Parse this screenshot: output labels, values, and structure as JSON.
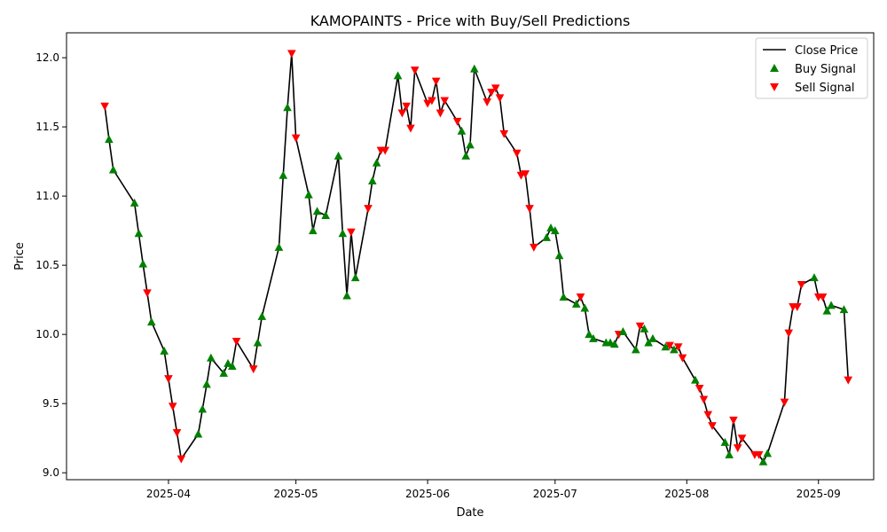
{
  "chart_data": {
    "type": "line",
    "title": "KAMOPAINTS - Price with Buy/Sell Predictions",
    "xlabel": "Date",
    "ylabel": "Price",
    "xlim": [
      "2025-03-08",
      "2025-09-14"
    ],
    "ylim": [
      8.95,
      12.18
    ],
    "x_ticks": [
      {
        "date": "2025-04-01",
        "label": "2025-04"
      },
      {
        "date": "2025-05-01",
        "label": "2025-05"
      },
      {
        "date": "2025-06-01",
        "label": "2025-06"
      },
      {
        "date": "2025-07-01",
        "label": "2025-07"
      },
      {
        "date": "2025-08-01",
        "label": "2025-08"
      },
      {
        "date": "2025-09-01",
        "label": "2025-09"
      }
    ],
    "y_ticks": [
      {
        "value": 9.0,
        "label": "9.0"
      },
      {
        "value": 9.5,
        "label": "9.5"
      },
      {
        "value": 10.0,
        "label": "10.0"
      },
      {
        "value": 10.5,
        "label": "10.5"
      },
      {
        "value": 11.0,
        "label": "11.0"
      },
      {
        "value": 11.5,
        "label": "11.5"
      },
      {
        "value": 12.0,
        "label": "12.0"
      }
    ],
    "grid": false,
    "legend_position": "top-right",
    "legend": [
      "Close Price",
      "Buy Signal",
      "Sell Signal"
    ],
    "colors": {
      "close": "#000000",
      "buy": "#008000",
      "sell": "#ff0000"
    },
    "series": [
      {
        "name": "Close Price",
        "points": [
          [
            "2025-03-17",
            11.65,
            "sell"
          ],
          [
            "2025-03-18",
            11.41,
            "buy"
          ],
          [
            "2025-03-19",
            11.19,
            "buy"
          ],
          [
            "2025-03-24",
            10.95,
            "buy"
          ],
          [
            "2025-03-25",
            10.73,
            "buy"
          ],
          [
            "2025-03-26",
            10.51,
            "buy"
          ],
          [
            "2025-03-27",
            10.3,
            "sell"
          ],
          [
            "2025-03-28",
            10.09,
            "buy"
          ],
          [
            "2025-03-31",
            9.88,
            "buy"
          ],
          [
            "2025-04-01",
            9.68,
            "sell"
          ],
          [
            "2025-04-02",
            9.48,
            "sell"
          ],
          [
            "2025-04-03",
            9.29,
            "sell"
          ],
          [
            "2025-04-04",
            9.1,
            "sell"
          ],
          [
            "2025-04-08",
            9.28,
            "buy"
          ],
          [
            "2025-04-09",
            9.46,
            "buy"
          ],
          [
            "2025-04-10",
            9.64,
            "buy"
          ],
          [
            "2025-04-11",
            9.83,
            "buy"
          ],
          [
            "2025-04-14",
            9.72,
            "buy"
          ],
          [
            "2025-04-15",
            9.79,
            "buy"
          ],
          [
            "2025-04-16",
            9.77,
            "buy"
          ],
          [
            "2025-04-17",
            9.95,
            "sell"
          ],
          [
            "2025-04-21",
            9.75,
            "sell"
          ],
          [
            "2025-04-22",
            9.94,
            "buy"
          ],
          [
            "2025-04-23",
            10.13,
            "buy"
          ],
          [
            "2025-04-27",
            10.63,
            "buy"
          ],
          [
            "2025-04-28",
            11.15,
            "buy"
          ],
          [
            "2025-04-29",
            11.64,
            "buy"
          ],
          [
            "2025-04-30",
            12.03,
            "sell"
          ],
          [
            "2025-05-01",
            11.42,
            "sell"
          ],
          [
            "2025-05-04",
            11.01,
            "buy"
          ],
          [
            "2025-05-05",
            10.75,
            "buy"
          ],
          [
            "2025-05-06",
            10.89,
            "buy"
          ],
          [
            "2025-05-08",
            10.86,
            "buy"
          ],
          [
            "2025-05-11",
            11.29,
            "buy"
          ],
          [
            "2025-05-12",
            10.73,
            "buy"
          ],
          [
            "2025-05-13",
            10.28,
            "buy"
          ],
          [
            "2025-05-14",
            10.74,
            "sell"
          ],
          [
            "2025-05-15",
            10.41,
            "buy"
          ],
          [
            "2025-05-18",
            10.91,
            "sell"
          ],
          [
            "2025-05-19",
            11.11,
            "buy"
          ],
          [
            "2025-05-20",
            11.24,
            "buy"
          ],
          [
            "2025-05-21",
            11.33,
            "sell"
          ],
          [
            "2025-05-22",
            11.33,
            "sell"
          ],
          [
            "2025-05-25",
            11.87,
            "buy"
          ],
          [
            "2025-05-26",
            11.6,
            "sell"
          ],
          [
            "2025-05-27",
            11.65,
            "sell"
          ],
          [
            "2025-05-28",
            11.49,
            "sell"
          ],
          [
            "2025-05-29",
            11.91,
            "sell"
          ],
          [
            "2025-06-01",
            11.67,
            "sell"
          ],
          [
            "2025-06-02",
            11.69,
            "sell"
          ],
          [
            "2025-06-03",
            11.83,
            "sell"
          ],
          [
            "2025-06-04",
            11.6,
            "sell"
          ],
          [
            "2025-06-05",
            11.69,
            "sell"
          ],
          [
            "2025-06-08",
            11.54,
            "sell"
          ],
          [
            "2025-06-09",
            11.47,
            "buy"
          ],
          [
            "2025-06-10",
            11.29,
            "buy"
          ],
          [
            "2025-06-11",
            11.37,
            "buy"
          ],
          [
            "2025-06-12",
            11.92,
            "buy"
          ],
          [
            "2025-06-15",
            11.68,
            "sell"
          ],
          [
            "2025-06-16",
            11.75,
            "sell"
          ],
          [
            "2025-06-17",
            11.78,
            "sell"
          ],
          [
            "2025-06-18",
            11.71,
            "sell"
          ],
          [
            "2025-06-19",
            11.45,
            "sell"
          ],
          [
            "2025-06-22",
            11.31,
            "sell"
          ],
          [
            "2025-06-23",
            11.15,
            "sell"
          ],
          [
            "2025-06-24",
            11.16,
            "sell"
          ],
          [
            "2025-06-25",
            10.91,
            "sell"
          ],
          [
            "2025-06-26",
            10.63,
            "sell"
          ],
          [
            "2025-06-29",
            10.7,
            "buy"
          ],
          [
            "2025-06-30",
            10.77,
            "buy"
          ],
          [
            "2025-07-01",
            10.75,
            "buy"
          ],
          [
            "2025-07-02",
            10.57,
            "buy"
          ],
          [
            "2025-07-03",
            10.27,
            "buy"
          ],
          [
            "2025-07-06",
            10.22,
            "buy"
          ],
          [
            "2025-07-07",
            10.27,
            "sell"
          ],
          [
            "2025-07-08",
            10.19,
            "buy"
          ],
          [
            "2025-07-09",
            10.0,
            "buy"
          ],
          [
            "2025-07-10",
            9.97,
            "buy"
          ],
          [
            "2025-07-13",
            9.94,
            "buy"
          ],
          [
            "2025-07-14",
            9.94,
            "buy"
          ],
          [
            "2025-07-15",
            9.93,
            "buy"
          ],
          [
            "2025-07-16",
            10.0,
            "sell"
          ],
          [
            "2025-07-17",
            10.02,
            "buy"
          ],
          [
            "2025-07-20",
            9.89,
            "buy"
          ],
          [
            "2025-07-21",
            10.06,
            "sell"
          ],
          [
            "2025-07-22",
            10.04,
            "buy"
          ],
          [
            "2025-07-23",
            9.94,
            "buy"
          ],
          [
            "2025-07-24",
            9.97,
            "buy"
          ],
          [
            "2025-07-27",
            9.91,
            "buy"
          ],
          [
            "2025-07-28",
            9.92,
            "sell"
          ],
          [
            "2025-07-29",
            9.89,
            "buy"
          ],
          [
            "2025-07-30",
            9.91,
            "sell"
          ],
          [
            "2025-07-31",
            9.83,
            "sell"
          ],
          [
            "2025-08-03",
            9.67,
            "buy"
          ],
          [
            "2025-08-04",
            9.61,
            "sell"
          ],
          [
            "2025-08-05",
            9.53,
            "sell"
          ],
          [
            "2025-08-06",
            9.42,
            "sell"
          ],
          [
            "2025-08-07",
            9.34,
            "sell"
          ],
          [
            "2025-08-10",
            9.22,
            "buy"
          ],
          [
            "2025-08-11",
            9.13,
            "buy"
          ],
          [
            "2025-08-12",
            9.38,
            "sell"
          ],
          [
            "2025-08-13",
            9.18,
            "sell"
          ],
          [
            "2025-08-14",
            9.25,
            "sell"
          ],
          [
            "2025-08-17",
            9.13,
            "sell"
          ],
          [
            "2025-08-18",
            9.13,
            "sell"
          ],
          [
            "2025-08-19",
            9.08,
            "buy"
          ],
          [
            "2025-08-20",
            9.14,
            "buy"
          ],
          [
            "2025-08-24",
            9.51,
            "sell"
          ],
          [
            "2025-08-25",
            10.01,
            "sell"
          ],
          [
            "2025-08-26",
            10.2,
            "sell"
          ],
          [
            "2025-08-27",
            10.2,
            "sell"
          ],
          [
            "2025-08-28",
            10.36,
            "sell"
          ],
          [
            "2025-08-31",
            10.41,
            "buy"
          ],
          [
            "2025-09-01",
            10.27,
            "sell"
          ],
          [
            "2025-09-02",
            10.27,
            "sell"
          ],
          [
            "2025-09-03",
            10.17,
            "buy"
          ],
          [
            "2025-09-04",
            10.21,
            "buy"
          ],
          [
            "2025-09-07",
            10.18,
            "buy"
          ],
          [
            "2025-09-08",
            9.67,
            "sell"
          ]
        ]
      }
    ]
  }
}
